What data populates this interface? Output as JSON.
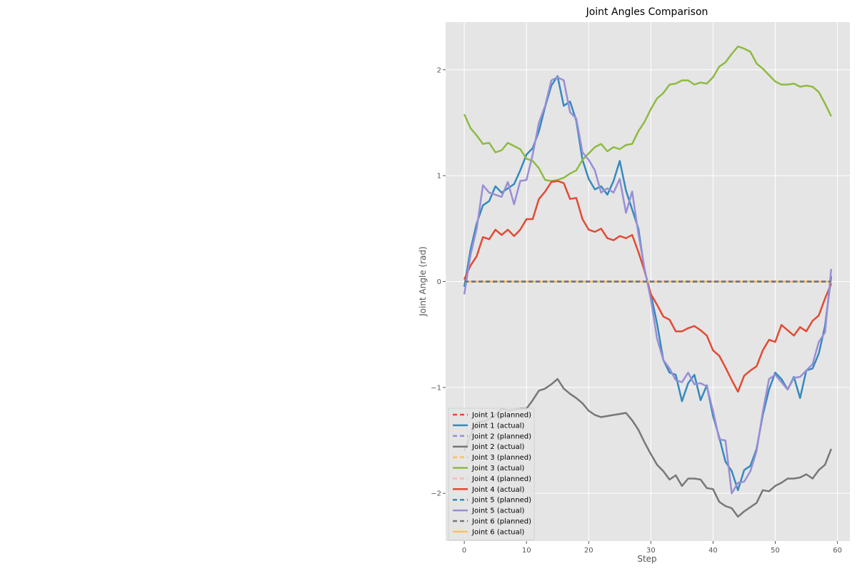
{
  "chart_data": {
    "type": "line",
    "title": "Joint Angles Comparison",
    "xlabel": "Step",
    "ylabel": "Joint Angle (rad)",
    "xlim": [
      -3,
      62
    ],
    "ylim": [
      -2.45,
      2.45
    ],
    "xticks": [
      0,
      10,
      20,
      30,
      40,
      50,
      60
    ],
    "yticks": [
      -2,
      -1,
      0,
      1,
      2
    ],
    "grid": true,
    "legend_position": "lower-left",
    "background": "#e5e5e5",
    "x": [
      0,
      1,
      2,
      3,
      4,
      5,
      6,
      7,
      8,
      9,
      10,
      11,
      12,
      13,
      14,
      15,
      16,
      17,
      18,
      19,
      20,
      21,
      22,
      23,
      24,
      25,
      26,
      27,
      28,
      29,
      30,
      31,
      32,
      33,
      34,
      35,
      36,
      37,
      38,
      39,
      40,
      41,
      42,
      43,
      44,
      45,
      46,
      47,
      48,
      49,
      50,
      51,
      52,
      53,
      54,
      55,
      56,
      57,
      58,
      59
    ],
    "series": [
      {
        "name": "Joint 1 (planned)",
        "color": "#E24A33",
        "dash": true,
        "values": [
          0,
          0,
          0,
          0,
          0,
          0,
          0,
          0,
          0,
          0,
          0,
          0,
          0,
          0,
          0,
          0,
          0,
          0,
          0,
          0,
          0,
          0,
          0,
          0,
          0,
          0,
          0,
          0,
          0,
          0,
          0,
          0,
          0,
          0,
          0,
          0,
          0,
          0,
          0,
          0,
          0,
          0,
          0,
          0,
          0,
          0,
          0,
          0,
          0,
          0,
          0,
          0,
          0,
          0,
          0,
          0,
          0,
          0,
          0,
          0
        ]
      },
      {
        "name": "Joint 1 (actual)",
        "color": "#348ABD",
        "dash": false,
        "values": [
          -0.05,
          0.3,
          0.55,
          0.72,
          0.76,
          0.9,
          0.84,
          0.88,
          0.92,
          1.05,
          1.2,
          1.26,
          1.42,
          1.65,
          1.85,
          1.94,
          1.66,
          1.7,
          1.52,
          1.15,
          0.97,
          0.87,
          0.9,
          0.82,
          0.95,
          1.14,
          0.86,
          0.68,
          0.5,
          0.1,
          -0.12,
          -0.4,
          -0.74,
          -0.86,
          -0.88,
          -1.13,
          -0.96,
          -0.88,
          -1.12,
          -0.98,
          -1.27,
          -1.47,
          -1.7,
          -1.79,
          -1.97,
          -1.78,
          -1.74,
          -1.58,
          -1.26,
          -1.02,
          -0.86,
          -0.92,
          -1.02,
          -0.9,
          -1.1,
          -0.84,
          -0.82,
          -0.68,
          -0.42,
          0.05
        ]
      },
      {
        "name": "Joint 2 (planned)",
        "color": "#988ED5",
        "dash": true,
        "values": [
          0,
          0,
          0,
          0,
          0,
          0,
          0,
          0,
          0,
          0,
          0,
          0,
          0,
          0,
          0,
          0,
          0,
          0,
          0,
          0,
          0,
          0,
          0,
          0,
          0,
          0,
          0,
          0,
          0,
          0,
          0,
          0,
          0,
          0,
          0,
          0,
          0,
          0,
          0,
          0,
          0,
          0,
          0,
          0,
          0,
          0,
          0,
          0,
          0,
          0,
          0,
          0,
          0,
          0,
          0,
          0,
          0,
          0,
          0,
          0
        ]
      },
      {
        "name": "Joint 2 (actual)",
        "color": "#777777",
        "dash": false,
        "values": [
          -1.6,
          -1.45,
          -1.33,
          -1.32,
          -1.3,
          -1.26,
          -1.2,
          -1.22,
          -1.21,
          -1.2,
          -1.2,
          -1.12,
          -1.03,
          -1.01,
          -0.97,
          -0.92,
          -1.01,
          -1.06,
          -1.1,
          -1.15,
          -1.22,
          -1.26,
          -1.28,
          -1.27,
          -1.26,
          -1.25,
          -1.24,
          -1.31,
          -1.4,
          -1.52,
          -1.63,
          -1.73,
          -1.79,
          -1.87,
          -1.83,
          -1.93,
          -1.86,
          -1.86,
          -1.87,
          -1.95,
          -1.96,
          -2.08,
          -2.12,
          -2.14,
          -2.22,
          -2.17,
          -2.13,
          -2.09,
          -1.97,
          -1.98,
          -1.93,
          -1.9,
          -1.86,
          -1.86,
          -1.85,
          -1.82,
          -1.86,
          -1.78,
          -1.73,
          -1.58
        ]
      },
      {
        "name": "Joint 3 (planned)",
        "color": "#FBC15E",
        "dash": true,
        "values": [
          0,
          0,
          0,
          0,
          0,
          0,
          0,
          0,
          0,
          0,
          0,
          0,
          0,
          0,
          0,
          0,
          0,
          0,
          0,
          0,
          0,
          0,
          0,
          0,
          0,
          0,
          0,
          0,
          0,
          0,
          0,
          0,
          0,
          0,
          0,
          0,
          0,
          0,
          0,
          0,
          0,
          0,
          0,
          0,
          0,
          0,
          0,
          0,
          0,
          0,
          0,
          0,
          0,
          0,
          0,
          0,
          0,
          0,
          0,
          0
        ]
      },
      {
        "name": "Joint 3 (actual)",
        "color": "#8EBA42",
        "dash": false,
        "values": [
          1.58,
          1.45,
          1.38,
          1.3,
          1.31,
          1.22,
          1.24,
          1.31,
          1.28,
          1.25,
          1.16,
          1.14,
          1.07,
          0.96,
          0.95,
          0.96,
          0.98,
          1.02,
          1.05,
          1.15,
          1.21,
          1.27,
          1.3,
          1.23,
          1.27,
          1.25,
          1.29,
          1.3,
          1.42,
          1.51,
          1.63,
          1.73,
          1.78,
          1.86,
          1.87,
          1.9,
          1.9,
          1.86,
          1.88,
          1.87,
          1.93,
          2.03,
          2.07,
          2.15,
          2.22,
          2.2,
          2.17,
          2.06,
          2.01,
          1.95,
          1.89,
          1.86,
          1.86,
          1.87,
          1.84,
          1.85,
          1.84,
          1.79,
          1.68,
          1.56
        ]
      },
      {
        "name": "Joint 4 (planned)",
        "color": "#FFB5B8",
        "dash": true,
        "values": [
          0,
          0,
          0,
          0,
          0,
          0,
          0,
          0,
          0,
          0,
          0,
          0,
          0,
          0,
          0,
          0,
          0,
          0,
          0,
          0,
          0,
          0,
          0,
          0,
          0,
          0,
          0,
          0,
          0,
          0,
          0,
          0,
          0,
          0,
          0,
          0,
          0,
          0,
          0,
          0,
          0,
          0,
          0,
          0,
          0,
          0,
          0,
          0,
          0,
          0,
          0,
          0,
          0,
          0,
          0,
          0,
          0,
          0,
          0,
          0
        ]
      },
      {
        "name": "Joint 4 (actual)",
        "color": "#E24A33",
        "dash": false,
        "values": [
          0.02,
          0.15,
          0.24,
          0.42,
          0.4,
          0.49,
          0.44,
          0.49,
          0.43,
          0.49,
          0.59,
          0.59,
          0.78,
          0.85,
          0.94,
          0.95,
          0.93,
          0.78,
          0.79,
          0.59,
          0.49,
          0.47,
          0.5,
          0.41,
          0.39,
          0.43,
          0.41,
          0.44,
          0.28,
          0.1,
          -0.12,
          -0.22,
          -0.33,
          -0.36,
          -0.47,
          -0.47,
          -0.44,
          -0.42,
          -0.46,
          -0.51,
          -0.65,
          -0.7,
          -0.81,
          -0.93,
          -1.04,
          -0.89,
          -0.84,
          -0.8,
          -0.65,
          -0.55,
          -0.57,
          -0.41,
          -0.46,
          -0.51,
          -0.43,
          -0.47,
          -0.37,
          -0.32,
          -0.16,
          -0.02
        ]
      },
      {
        "name": "Joint 5 (planned)",
        "color": "#348ABD",
        "dash": true,
        "values": [
          0,
          0,
          0,
          0,
          0,
          0,
          0,
          0,
          0,
          0,
          0,
          0,
          0,
          0,
          0,
          0,
          0,
          0,
          0,
          0,
          0,
          0,
          0,
          0,
          0,
          0,
          0,
          0,
          0,
          0,
          0,
          0,
          0,
          0,
          0,
          0,
          0,
          0,
          0,
          0,
          0,
          0,
          0,
          0,
          0,
          0,
          0,
          0,
          0,
          0,
          0,
          0,
          0,
          0,
          0,
          0,
          0,
          0,
          0,
          0
        ]
      },
      {
        "name": "Joint 5 (actual)",
        "color": "#988ED5",
        "dash": false,
        "values": [
          -0.12,
          0.25,
          0.5,
          0.91,
          0.84,
          0.82,
          0.8,
          0.94,
          0.73,
          0.95,
          0.96,
          1.2,
          1.5,
          1.66,
          1.9,
          1.93,
          1.9,
          1.6,
          1.54,
          1.22,
          1.15,
          1.05,
          0.84,
          0.88,
          0.84,
          0.97,
          0.65,
          0.85,
          0.45,
          0.12,
          -0.17,
          -0.54,
          -0.74,
          -0.82,
          -0.93,
          -0.95,
          -0.86,
          -0.97,
          -0.96,
          -0.99,
          -1.22,
          -1.49,
          -1.5,
          -2.0,
          -1.9,
          -1.89,
          -1.79,
          -1.6,
          -1.23,
          -0.92,
          -0.88,
          -0.95,
          -1.02,
          -0.91,
          -0.9,
          -0.84,
          -0.78,
          -0.57,
          -0.48,
          0.12
        ]
      },
      {
        "name": "Joint 6 (planned)",
        "color": "#777777",
        "dash": true,
        "values": [
          0,
          0,
          0,
          0,
          0,
          0,
          0,
          0,
          0,
          0,
          0,
          0,
          0,
          0,
          0,
          0,
          0,
          0,
          0,
          0,
          0,
          0,
          0,
          0,
          0,
          0,
          0,
          0,
          0,
          0,
          0,
          0,
          0,
          0,
          0,
          0,
          0,
          0,
          0,
          0,
          0,
          0,
          0,
          0,
          0,
          0,
          0,
          0,
          0,
          0,
          0,
          0,
          0,
          0,
          0,
          0,
          0,
          0,
          0,
          0
        ]
      },
      {
        "name": "Joint 6 (actual)",
        "color": "#FBC15E",
        "dash": false,
        "values": [
          0,
          0,
          0,
          0,
          0,
          0,
          0,
          0,
          0,
          0,
          0,
          0,
          0,
          0,
          0,
          0,
          0,
          0,
          0,
          0,
          0,
          0,
          0,
          0,
          0,
          0,
          0,
          0,
          0,
          0,
          0,
          0,
          0,
          0,
          0,
          0,
          0,
          0,
          0,
          0,
          0,
          0,
          0,
          0,
          0,
          0,
          0,
          0,
          0,
          0,
          0,
          0,
          0,
          0,
          0,
          0,
          0,
          0,
          0,
          0
        ]
      }
    ]
  }
}
